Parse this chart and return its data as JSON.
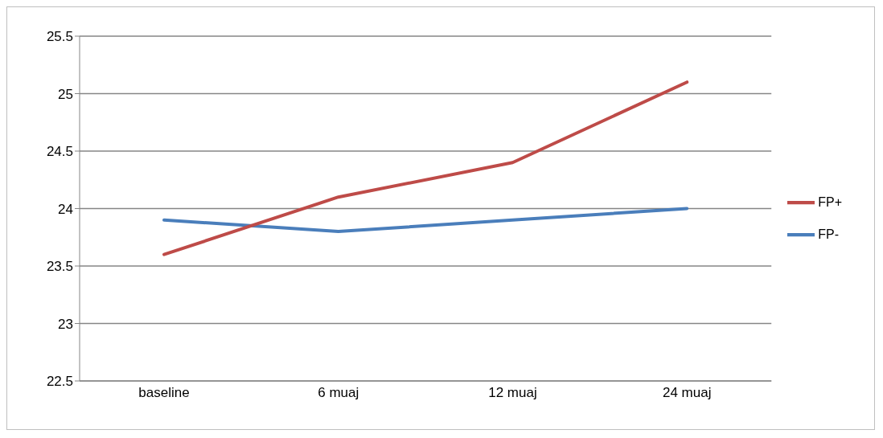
{
  "chart_data": {
    "type": "line",
    "categories": [
      "baseline",
      "6 muaj",
      "12 muaj",
      "24 muaj"
    ],
    "series": [
      {
        "name": "FP-",
        "color": "#4a7ebb",
        "values": [
          23.9,
          23.8,
          23.9,
          24.0
        ]
      },
      {
        "name": "FP+",
        "color": "#be4b48",
        "values": [
          23.6,
          24.1,
          24.4,
          25.1
        ]
      }
    ],
    "ylim": [
      22.5,
      25.5
    ],
    "yticks": [
      22.5,
      23,
      23.5,
      24,
      24.5,
      25,
      25.5
    ],
    "grid": "y",
    "legend": "right",
    "marker": "none",
    "line_style": "solid"
  }
}
